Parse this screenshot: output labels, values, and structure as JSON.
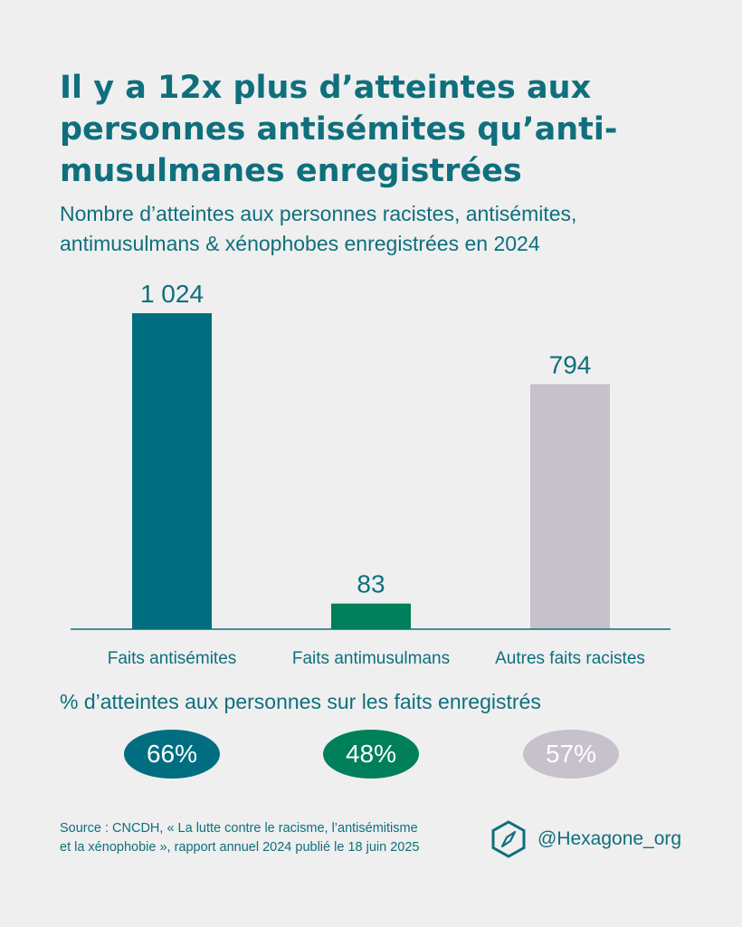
{
  "title": "Il y a 12x plus d’atteintes aux\npersonnes antisémites qu’anti-\nmusulmanes enregistrées",
  "subtitle": "Nombre d’atteintes aux personnes racistes, antisémites,\nantimusulmans & xénophobes enregistrées en 2024",
  "chart_data": {
    "type": "bar",
    "categories": [
      "Faits antisémites",
      "Faits antimusulmans",
      "Autres faits racistes"
    ],
    "values": [
      1024,
      83,
      794
    ],
    "value_labels": [
      "1 024",
      "83",
      "794"
    ],
    "colors": [
      "#006e80",
      "#00805a",
      "#c6c1cb"
    ],
    "ylim": [
      0,
      1024
    ]
  },
  "percent_heading": "% d’atteintes aux personnes sur les faits enregistrés",
  "percents": [
    {
      "label": "66%",
      "color": "#006e80"
    },
    {
      "label": "48%",
      "color": "#00805a"
    },
    {
      "label": "57%",
      "color": "#c6c1cb"
    }
  ],
  "source": "Source : CNCDH, « La lutte contre le racisme, l’antisémitisme\net la xénophobie », rapport annuel 2024 publié le 18 juin 2025",
  "brand": {
    "handle": "@Hexagone_org",
    "icon": "hexagon-compass-icon",
    "color": "#0f6f7d"
  }
}
